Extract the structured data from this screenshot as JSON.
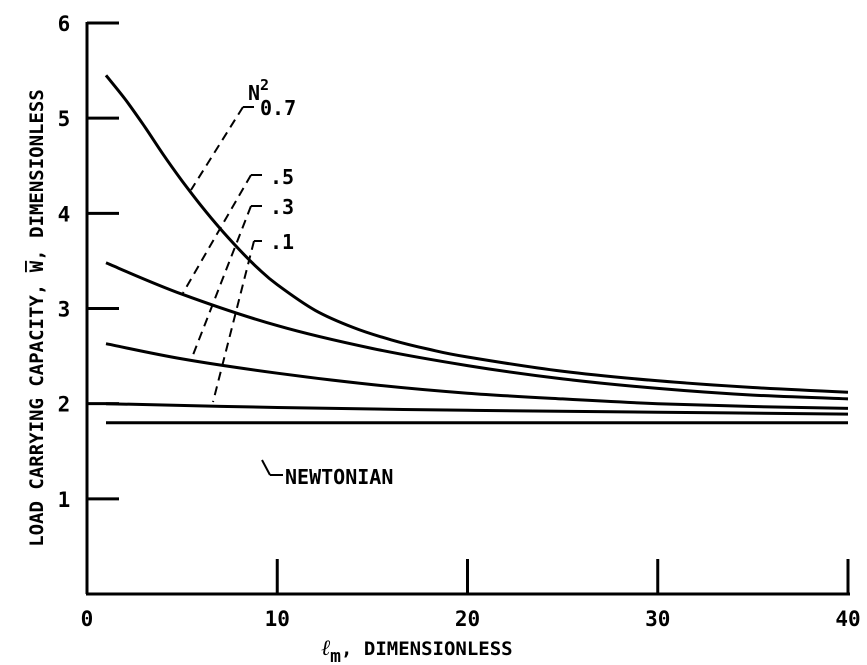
{
  "chart_data": {
    "type": "line",
    "title": "",
    "xlabel": {
      "symbol": "ℓ",
      "subscript": "m",
      "rest": ", DIMENSIONLESS"
    },
    "ylabel": {
      "before": "LOAD CARRYING CAPACITY, ",
      "symbol": "W",
      "after": ", DIMENSIONLESS"
    },
    "xlim": [
      0,
      40
    ],
    "ylim": [
      0,
      6
    ],
    "xticks": [
      0,
      10,
      20,
      30,
      40
    ],
    "xtick_labels": [
      "0",
      "10",
      "20",
      "30",
      "40"
    ],
    "yticks": [
      1,
      2,
      3,
      4,
      5,
      6
    ],
    "ytick_labels": [
      "1",
      "2",
      "3",
      "4",
      "5",
      "6"
    ],
    "grid": false,
    "legend_title": {
      "base": "N",
      "sup": "2"
    },
    "series": [
      {
        "name": "0.7",
        "x": [
          1.0,
          2,
          3,
          4,
          5,
          6,
          7,
          8,
          9,
          10,
          12,
          14,
          16,
          18,
          20,
          25,
          30,
          35,
          40
        ],
        "values": [
          5.45,
          5.2,
          4.92,
          4.62,
          4.34,
          4.08,
          3.84,
          3.62,
          3.42,
          3.25,
          2.98,
          2.8,
          2.67,
          2.57,
          2.49,
          2.34,
          2.24,
          2.17,
          2.12
        ]
      },
      {
        "name": ".5",
        "x": [
          1.0,
          5,
          10,
          15,
          20,
          25,
          30,
          35,
          40
        ],
        "values": [
          3.48,
          3.15,
          2.82,
          2.58,
          2.4,
          2.26,
          2.16,
          2.09,
          2.05
        ]
      },
      {
        "name": ".3",
        "x": [
          1.0,
          5,
          10,
          15,
          20,
          25,
          30,
          35,
          40
        ],
        "values": [
          2.63,
          2.47,
          2.32,
          2.2,
          2.11,
          2.05,
          2.0,
          1.97,
          1.95
        ]
      },
      {
        "name": ".1",
        "x": [
          1.0,
          10,
          20,
          30,
          40
        ],
        "values": [
          2.0,
          1.96,
          1.93,
          1.91,
          1.89
        ]
      },
      {
        "name": "NEWTONIAN",
        "x": [
          1.0,
          40
        ],
        "values": [
          1.8,
          1.8
        ]
      }
    ]
  }
}
